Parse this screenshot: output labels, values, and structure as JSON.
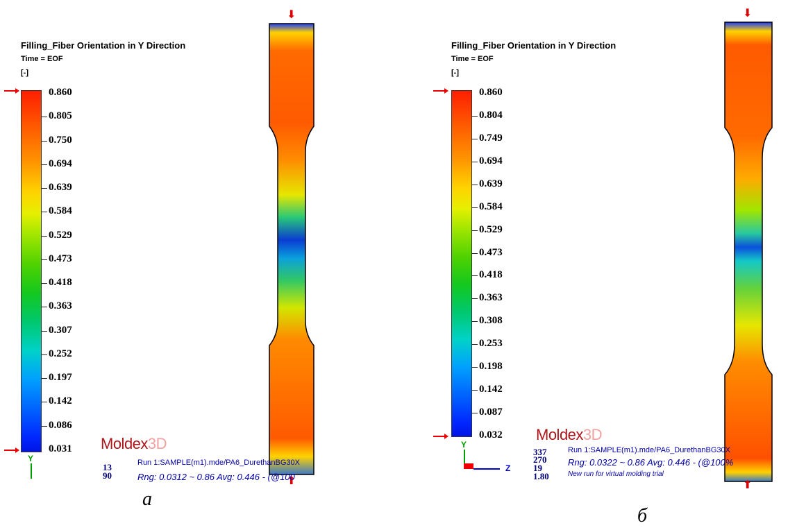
{
  "panel_a": {
    "title": "Filling_Fiber Orientation in Y Direction",
    "time": "Time = EOF",
    "unit": "[-]",
    "ticks": [
      "0.860",
      "0.805",
      "0.750",
      "0.694",
      "0.639",
      "0.584",
      "0.529",
      "0.473",
      "0.418",
      "0.363",
      "0.307",
      "0.252",
      "0.197",
      "0.142",
      "0.086",
      "0.031"
    ],
    "logo_main": "Moldex",
    "logo_3d": "3D",
    "info_numbers": [
      "13",
      "90"
    ],
    "run": "Run 1:SAMPLE(m1).mde/PA6_DurethanBG30X",
    "range": "Rng: 0.0312 ~ 0.86  Avg: 0.446 - (@100",
    "axis_y": "Y",
    "caption": "a"
  },
  "panel_b": {
    "title": "Filling_Fiber Orientation in Y Direction",
    "time": "Time = EOF",
    "unit": "[-]",
    "ticks": [
      "0.860",
      "0.804",
      "0.749",
      "0.694",
      "0.639",
      "0.584",
      "0.529",
      "0.473",
      "0.418",
      "0.363",
      "0.308",
      "0.253",
      "0.198",
      "0.142",
      "0.087",
      "0.032"
    ],
    "logo_main": "Moldex",
    "logo_3d": "3D",
    "info_numbers": [
      "337",
      "270",
      "19",
      "1.80"
    ],
    "run": "Run 1:SAMPLE(m1).mde/PA6_DurethanBG30X",
    "range": "Rng: 0.0322 ~ 0.86  Avg: 0.446 - (@100%",
    "new_run": "New run for virtual molding trial",
    "axis_y": "Y",
    "axis_z": "Z",
    "caption": "б"
  },
  "colors": {
    "high": "#ff2a00",
    "mid": "#e6f000",
    "low": "#0014e6",
    "marker": "#e00000"
  }
}
